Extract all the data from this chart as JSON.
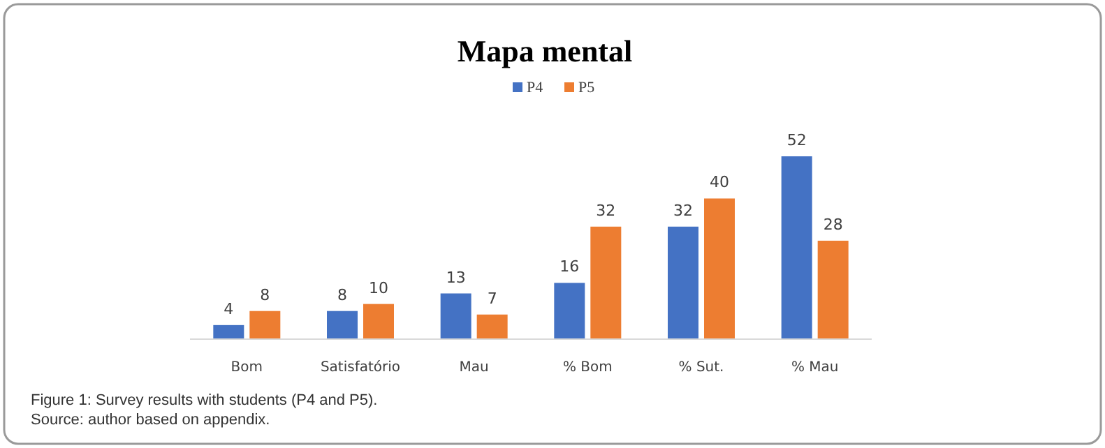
{
  "chart_data": {
    "type": "bar",
    "title": "Mapa mental",
    "categories": [
      "Bom",
      "Satisfatório",
      "Mau",
      "% Bom",
      "% Sut.",
      "% Mau"
    ],
    "series": [
      {
        "name": "P4",
        "color": "#4472c4",
        "values": [
          4,
          8,
          13,
          16,
          32,
          52
        ]
      },
      {
        "name": "P5",
        "color": "#ed7d31",
        "values": [
          8,
          10,
          7,
          32,
          40,
          28
        ]
      }
    ],
    "data_labels": true,
    "legend": "top",
    "grid": false,
    "annotations": [
      "Figure 1: Survey results with students (P4 and P5).",
      "Source: author based on appendix."
    ]
  }
}
